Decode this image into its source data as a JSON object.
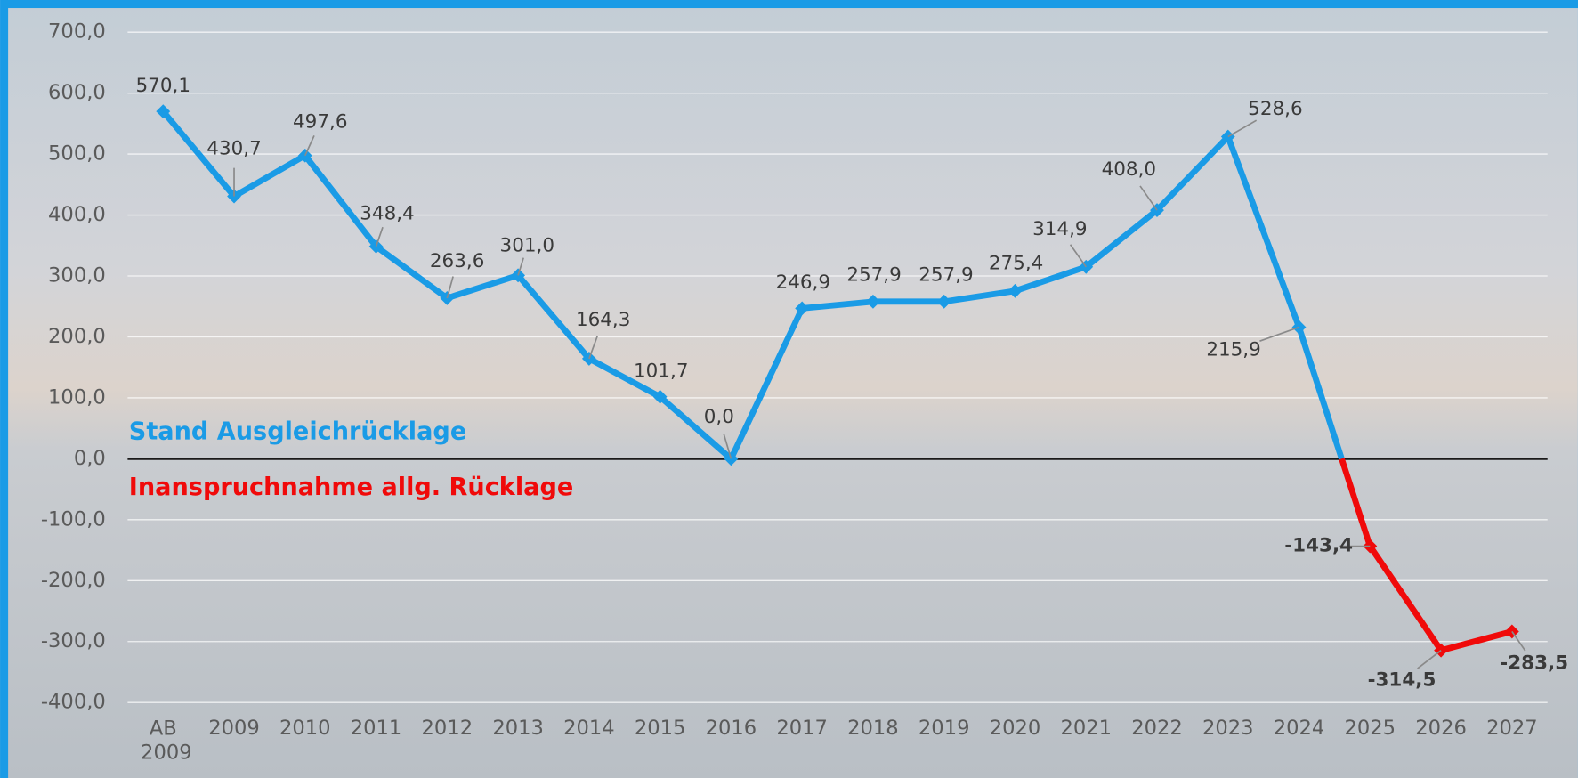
{
  "chart_data": {
    "type": "line",
    "categories": [
      "AB 2009",
      "2009",
      "2010",
      "2011",
      "2012",
      "2013",
      "2014",
      "2015",
      "2016",
      "2017",
      "2018",
      "2019",
      "2020",
      "2021",
      "2022",
      "2023",
      "2024",
      "2025",
      "2026",
      "2027"
    ],
    "series": [
      {
        "name": "Stand Ausgleichrücklage",
        "color": "#1a9be6",
        "values": [
          570.1,
          430.7,
          497.6,
          348.4,
          263.6,
          301.0,
          164.3,
          101.7,
          0.0,
          246.9,
          257.9,
          257.9,
          275.4,
          314.9,
          408.0,
          528.6,
          215.9,
          null,
          null,
          null
        ],
        "value_labels": [
          "570,1",
          "430,7",
          "497,6",
          "348,4",
          "263,6",
          "301,0",
          "164,3",
          "101,7",
          "0,0",
          "246,9",
          "257,9",
          "257,9",
          "275,4",
          "314,9",
          "408,0",
          "528,6",
          "215,9",
          null,
          null,
          null
        ]
      },
      {
        "name": "Inanspruchnahme allg. Rücklage",
        "color": "#f00a0a",
        "values": [
          null,
          null,
          null,
          null,
          null,
          null,
          null,
          null,
          null,
          null,
          null,
          null,
          null,
          null,
          null,
          null,
          null,
          -143.4,
          -314.5,
          -283.5
        ],
        "value_labels": [
          null,
          null,
          null,
          null,
          null,
          null,
          null,
          null,
          null,
          null,
          null,
          null,
          null,
          null,
          null,
          null,
          null,
          "-143,4",
          "-314,5",
          "-283,5"
        ]
      }
    ],
    "ylim": [
      -400,
      700
    ],
    "yticks": [
      {
        "value": -400,
        "label": "-400,0"
      },
      {
        "value": -300,
        "label": "-300,0"
      },
      {
        "value": -200,
        "label": "-200,0"
      },
      {
        "value": -100,
        "label": "-100,0"
      },
      {
        "value": 0,
        "label": "0,0"
      },
      {
        "value": 100,
        "label": "100,0"
      },
      {
        "value": 200,
        "label": "200,0"
      },
      {
        "value": 300,
        "label": "300,0"
      },
      {
        "value": 400,
        "label": "400,0"
      },
      {
        "value": 500,
        "label": "500,0"
      },
      {
        "value": 600,
        "label": "600,0"
      },
      {
        "value": 700,
        "label": "700,0"
      }
    ],
    "grid": true
  }
}
